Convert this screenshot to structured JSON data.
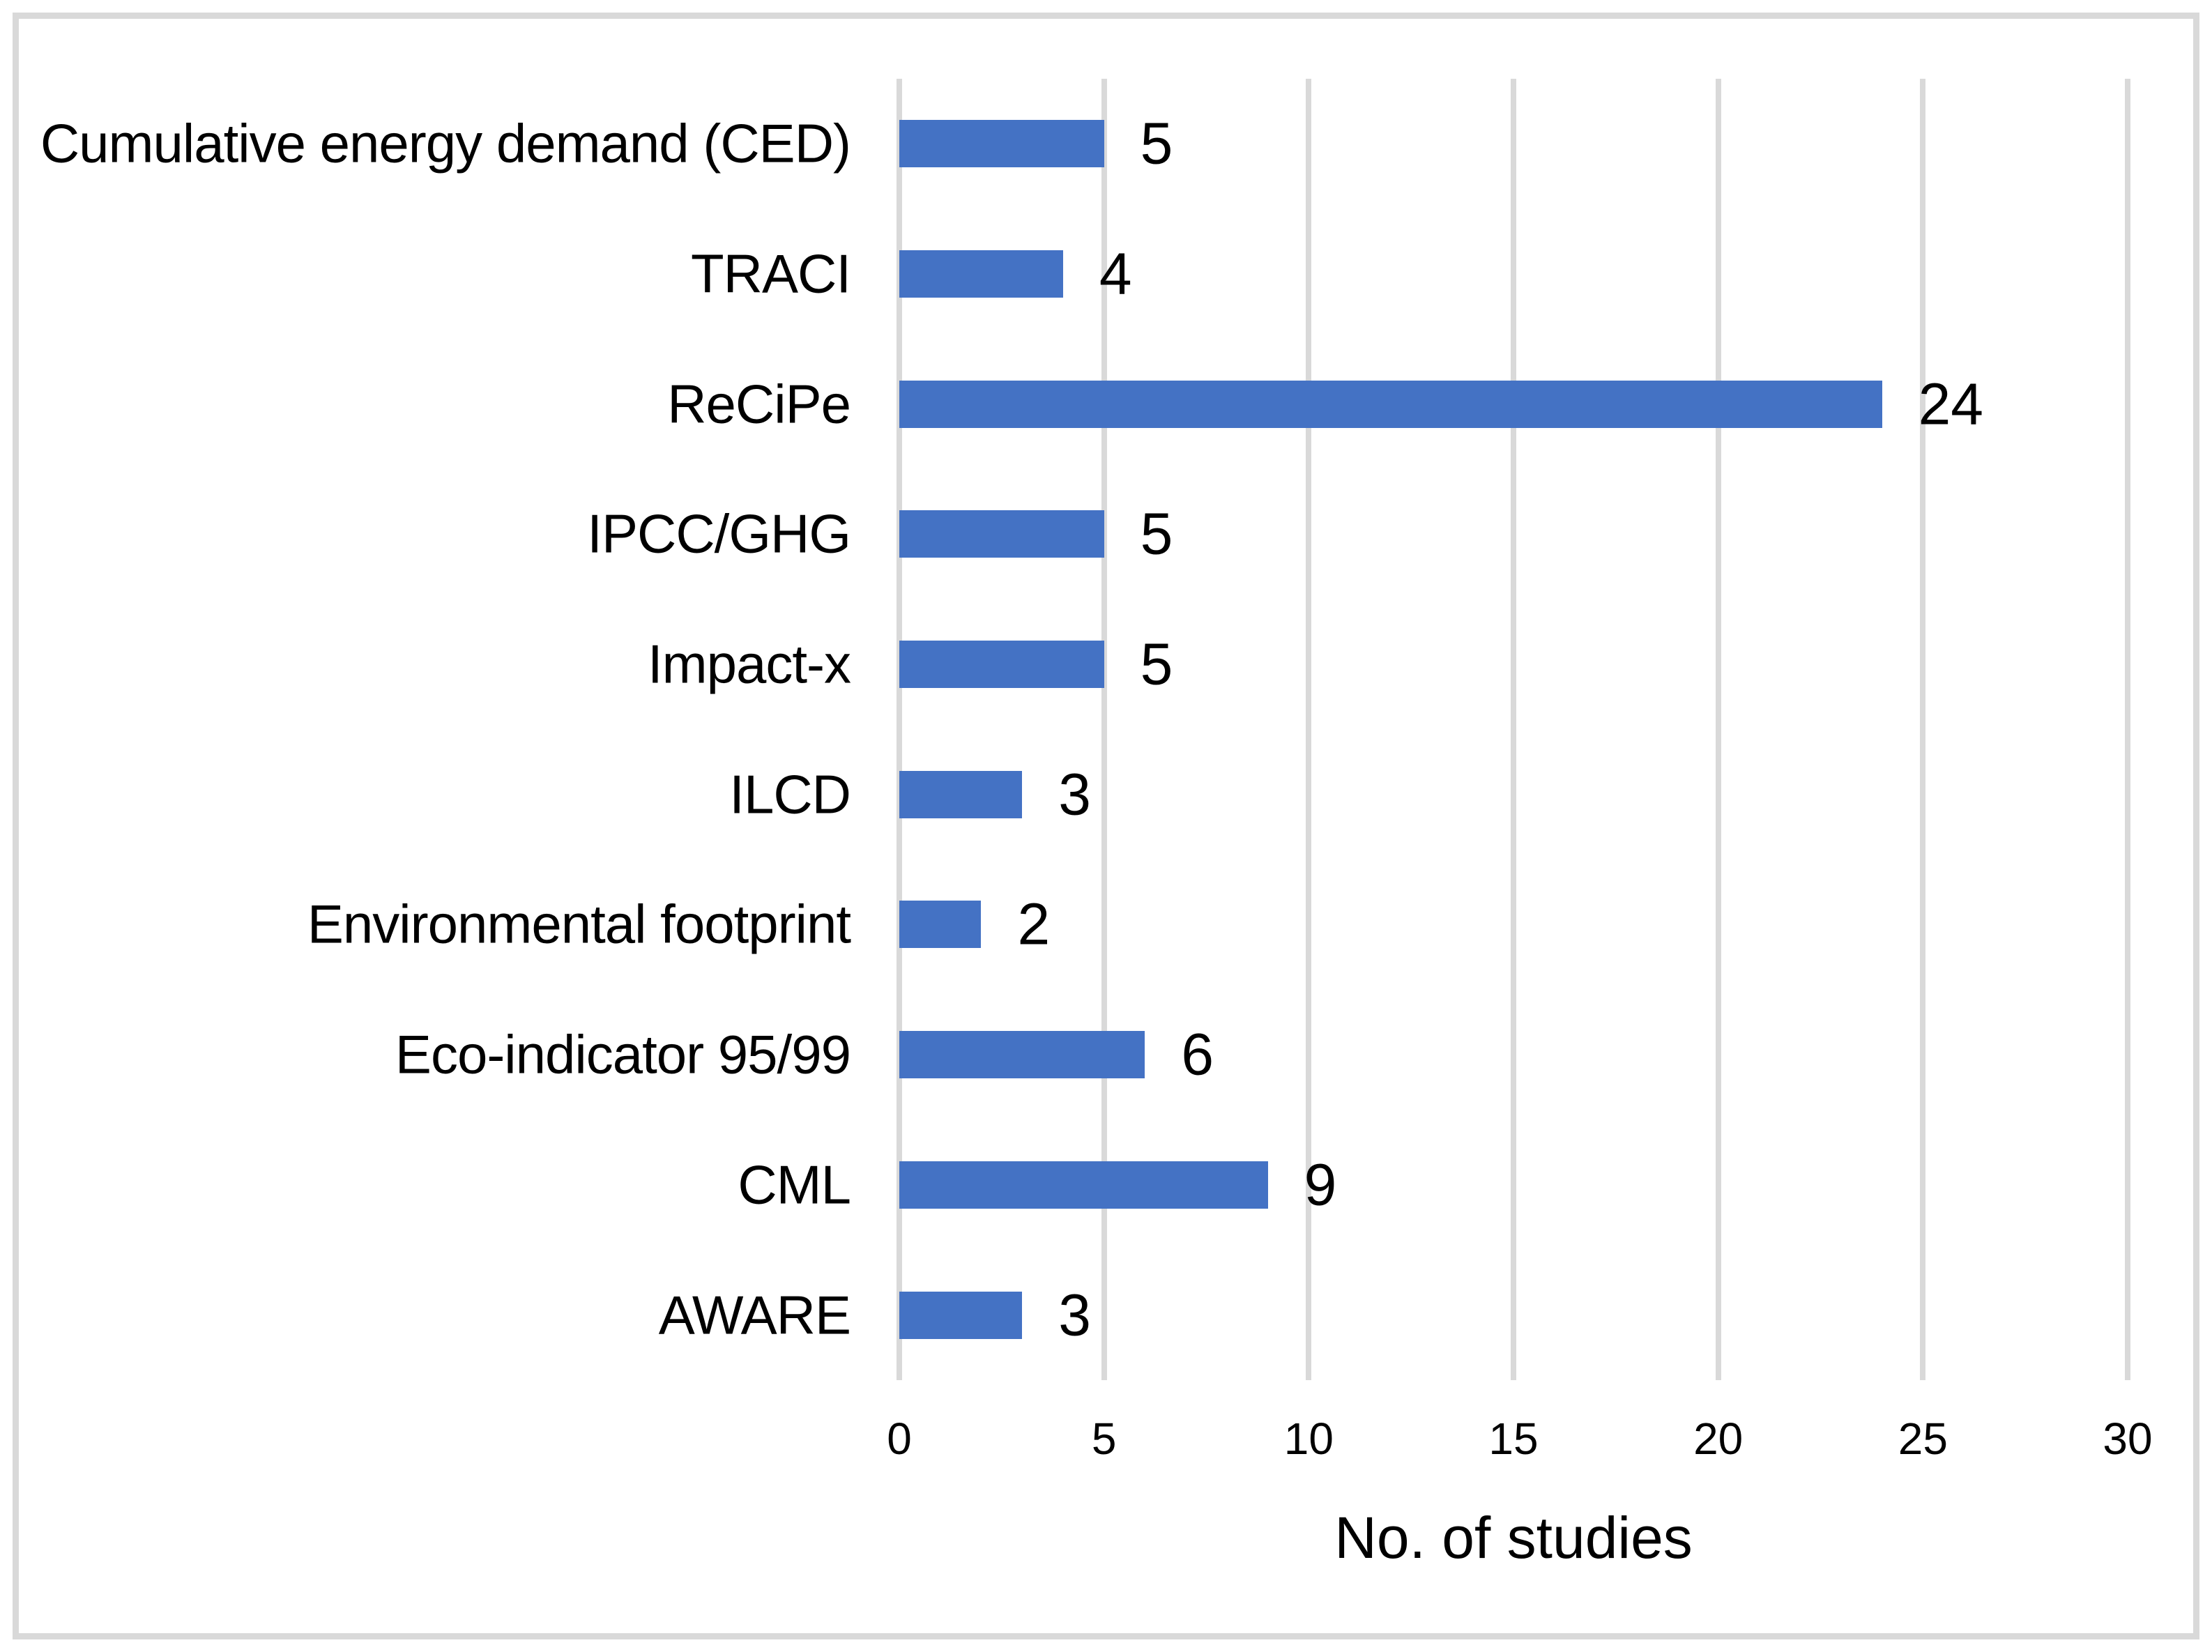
{
  "chart_data": {
    "type": "bar",
    "orientation": "horizontal",
    "title": "",
    "categories": [
      "Cumulative energy demand (CED)",
      "TRACI",
      "ReCiPe",
      "IPCC/GHG",
      "Impact-x",
      "ILCD",
      "Environmental footprint",
      "Eco-indicator 95/99",
      "CML",
      "AWARE"
    ],
    "values": [
      5,
      4,
      24,
      5,
      5,
      3,
      2,
      6,
      9,
      3
    ],
    "data_labels_shown": true,
    "xlabel": "No. of studies",
    "ylabel": "",
    "xlim": [
      0,
      30
    ],
    "xticks": [
      0,
      5,
      10,
      15,
      20,
      25,
      30
    ],
    "legend": "none",
    "grid": "vertical gridlines only",
    "colors": {
      "bar": "#4472C4",
      "gridline": "#D9D9D9",
      "frame_border": "#D9D9D9",
      "text": "#000000",
      "background": "#FFFFFF"
    }
  }
}
